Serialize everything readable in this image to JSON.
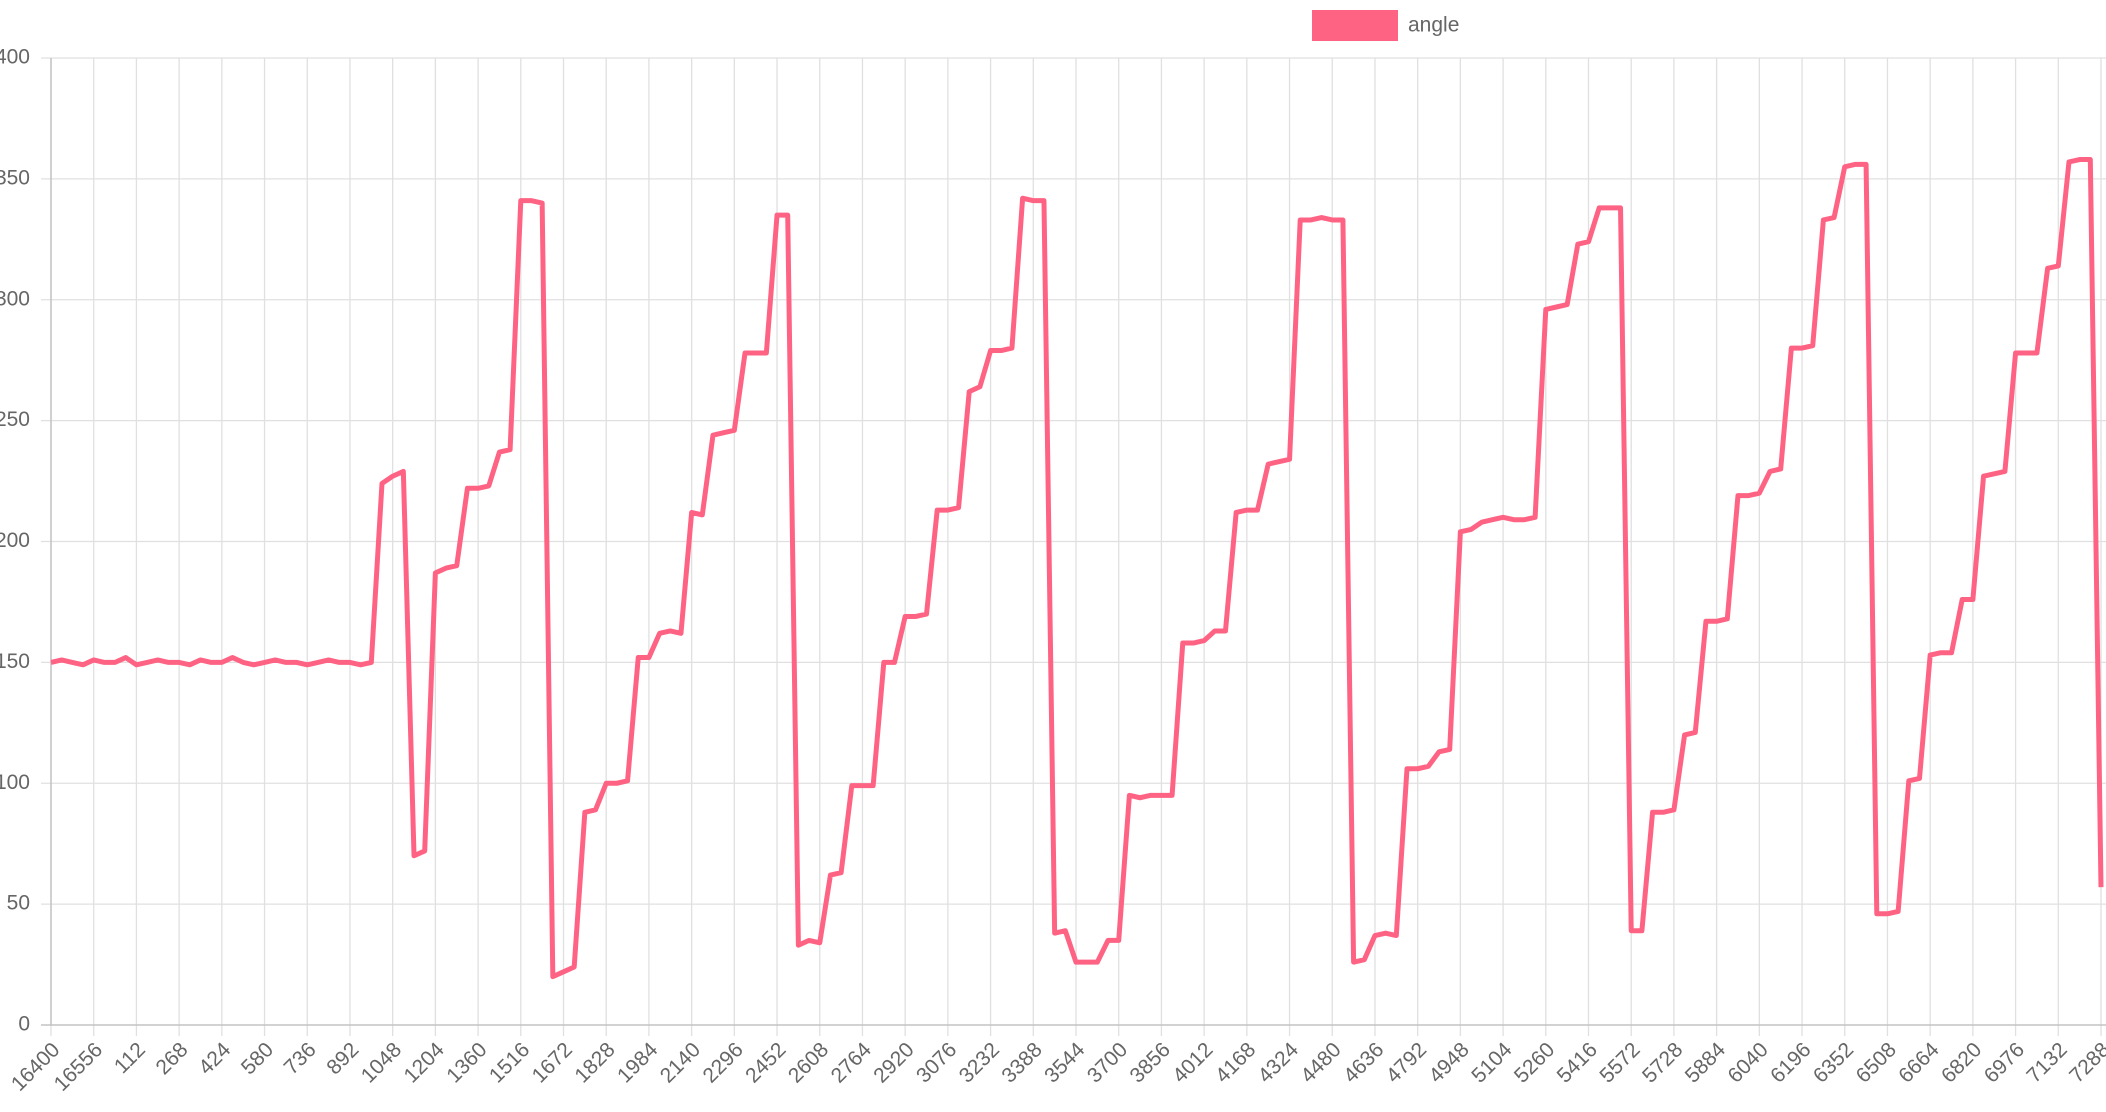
{
  "chart_data": {
    "type": "line",
    "categories": [
      "16400",
      null,
      null,
      null,
      "16556",
      null,
      null,
      null,
      "112",
      null,
      null,
      null,
      "268",
      null,
      null,
      null,
      "424",
      null,
      null,
      null,
      "580",
      null,
      null,
      null,
      "736",
      null,
      null,
      null,
      "892",
      null,
      null,
      null,
      "1048",
      null,
      null,
      null,
      "1204",
      null,
      null,
      null,
      "1360",
      null,
      null,
      null,
      "1516",
      null,
      null,
      null,
      "1672",
      null,
      null,
      null,
      "1828",
      null,
      null,
      null,
      "1984",
      null,
      null,
      null,
      "2140",
      null,
      null,
      null,
      "2296",
      null,
      null,
      null,
      "2452",
      null,
      null,
      null,
      "2608",
      null,
      null,
      null,
      "2764",
      null,
      null,
      null,
      "2920",
      null,
      null,
      null,
      "3076",
      null,
      null,
      null,
      "3232",
      null,
      null,
      null,
      "3388",
      null,
      null,
      null,
      "3544",
      null,
      null,
      null,
      "3700",
      null,
      null,
      null,
      "3856",
      null,
      null,
      null,
      "4012",
      null,
      null,
      null,
      "4168",
      null,
      null,
      null,
      "4324",
      null,
      null,
      null,
      "4480",
      null,
      null,
      null,
      "4636",
      null,
      null,
      null,
      "4792",
      null,
      null,
      null,
      "4948",
      null,
      null,
      null,
      "5104",
      null,
      null,
      null,
      "5260",
      null,
      null,
      null,
      "5416",
      null,
      null,
      null,
      "5572",
      null,
      null,
      null,
      "5728",
      null,
      null,
      null,
      "5884",
      null,
      null,
      null,
      "6040",
      null,
      null,
      null,
      "6196",
      null,
      null,
      null,
      "6352",
      null,
      null,
      null,
      "6508",
      null,
      null,
      null,
      "6664",
      null,
      null,
      null,
      "6820",
      null,
      null,
      null,
      "6976",
      null,
      null,
      null,
      "7132",
      null,
      null,
      null,
      "7288"
    ],
    "series": [
      {
        "name": "angle",
        "color": "#ff6384",
        "values": [
          150,
          151,
          150,
          149,
          151,
          150,
          150,
          152,
          149,
          150,
          151,
          150,
          150,
          149,
          151,
          150,
          150,
          152,
          150,
          149,
          150,
          151,
          150,
          150,
          149,
          150,
          151,
          150,
          150,
          149,
          150,
          224,
          227,
          229,
          70,
          72,
          187,
          189,
          190,
          222,
          222,
          223,
          237,
          238,
          341,
          341,
          340,
          20,
          22,
          24,
          88,
          89,
          100,
          100,
          101,
          152,
          152,
          162,
          163,
          162,
          212,
          211,
          244,
          245,
          246,
          278,
          278,
          278,
          335,
          335,
          33,
          35,
          34,
          62,
          63,
          99,
          99,
          99,
          150,
          150,
          169,
          169,
          170,
          213,
          213,
          214,
          262,
          264,
          279,
          279,
          280,
          342,
          341,
          341,
          38,
          39,
          26,
          26,
          26,
          35,
          35,
          95,
          94,
          95,
          95,
          95,
          158,
          158,
          159,
          163,
          163,
          212,
          213,
          213,
          232,
          233,
          234,
          333,
          333,
          334,
          333,
          333,
          26,
          27,
          37,
          38,
          37,
          106,
          106,
          107,
          113,
          114,
          204,
          205,
          208,
          209,
          210,
          209,
          209,
          210,
          296,
          297,
          298,
          323,
          324,
          338,
          338,
          338,
          39,
          39,
          88,
          88,
          89,
          120,
          121,
          167,
          167,
          168,
          219,
          219,
          220,
          229,
          230,
          280,
          280,
          281,
          333,
          334,
          355,
          356,
          356,
          46,
          46,
          47,
          101,
          102,
          153,
          154,
          154,
          176,
          176,
          227,
          228,
          229,
          278,
          278,
          278,
          313,
          314,
          357,
          358,
          358,
          57
        ]
      }
    ],
    "ylim": [
      0,
      400
    ],
    "yticks": [
      0,
      50,
      100,
      150,
      200,
      250,
      300,
      350,
      400
    ],
    "grid": true,
    "legend": "top"
  }
}
